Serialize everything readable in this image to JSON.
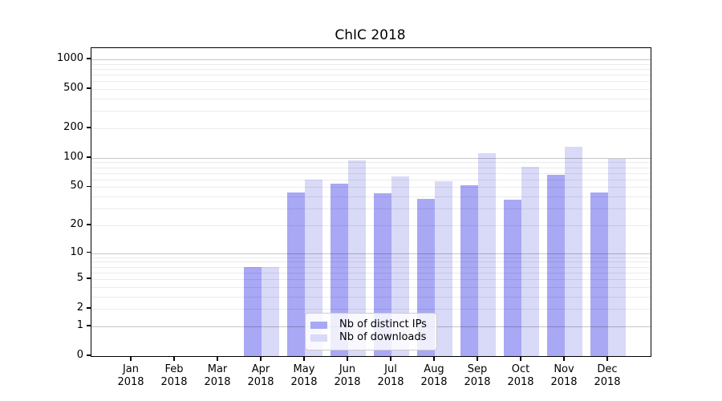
{
  "figure": {
    "title": "ChIC 2018"
  },
  "chart_data": {
    "type": "bar",
    "title": "ChIC 2018",
    "months": [
      "Jan",
      "Feb",
      "Mar",
      "Apr",
      "May",
      "Jun",
      "Jul",
      "Aug",
      "Sep",
      "Oct",
      "Nov",
      "Dec"
    ],
    "year": "2018",
    "series": [
      {
        "name": "Nb of distinct IPs",
        "color": "#a8a8f5",
        "values": [
          0,
          0,
          0,
          7,
          44,
          54,
          43,
          38,
          52,
          37,
          67,
          44
        ]
      },
      {
        "name": "Nb of downloads",
        "color": "#d9d9f8",
        "values": [
          0,
          0,
          0,
          7,
          60,
          94,
          65,
          58,
          112,
          81,
          131,
          97
        ]
      }
    ],
    "y_ticks": [
      0,
      1,
      2,
      5,
      10,
      20,
      50,
      100,
      200,
      500,
      1000
    ],
    "y_scale": "log10(value+1)",
    "ylim": [
      0,
      1300
    ],
    "grid": "horizontal, minor ticks 2-9 per decade, drawn above bars",
    "legend_position": "lower center",
    "colors": {
      "major_grid": "rgba(0,0,0,0.22)",
      "minor_grid": "rgba(0,0,0,0.08)",
      "axis": "#000000",
      "legend_border": "#cccccc"
    }
  }
}
